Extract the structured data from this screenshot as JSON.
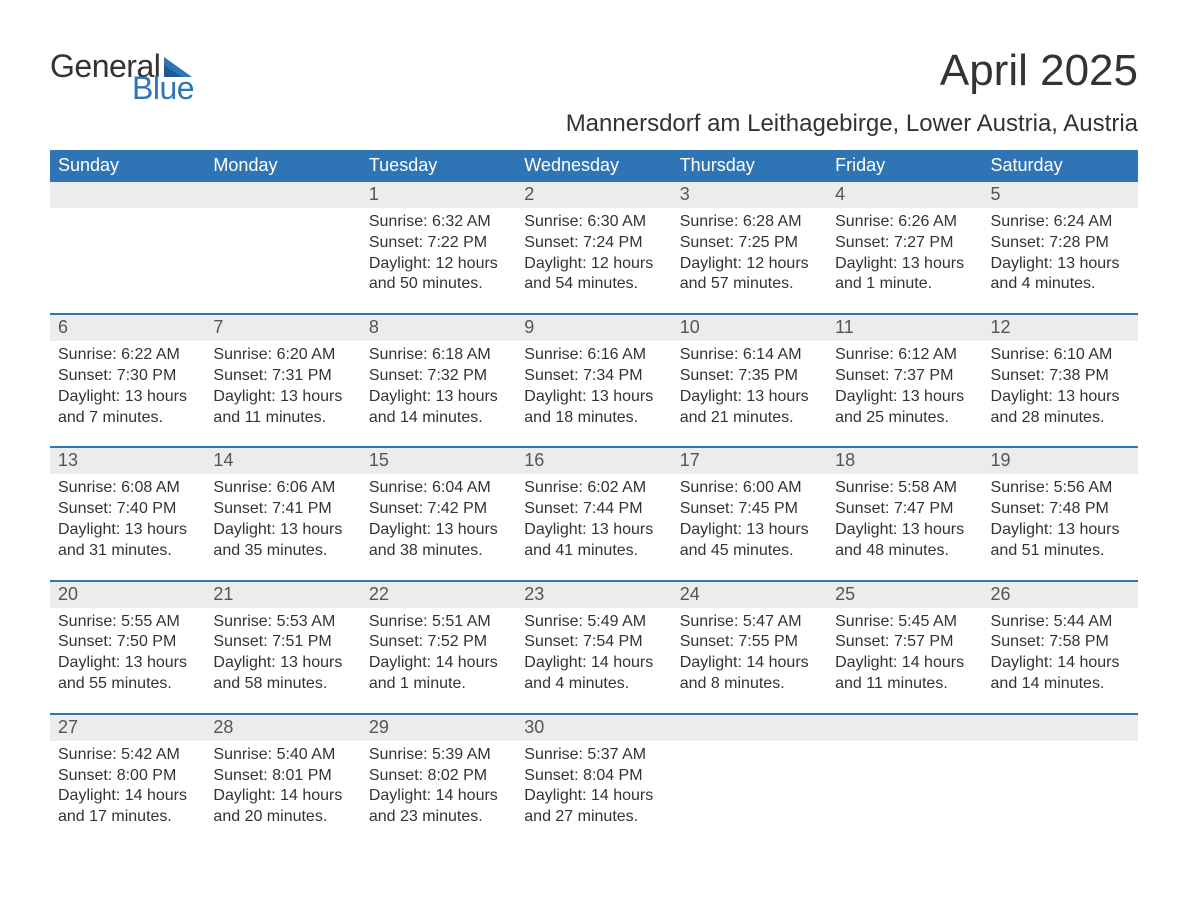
{
  "logo": {
    "text1": "General",
    "text2": "Blue",
    "icon_color": "#2f75b5"
  },
  "title": "April 2025",
  "subtitle": "Mannersdorf am Leithagebirge, Lower Austria, Austria",
  "colors": {
    "header_bg": "#2f75b5",
    "header_text": "#ffffff",
    "daynum_bg": "#ececec",
    "daynum_text": "#555555",
    "body_text": "#333333",
    "week_border": "#2f75b5"
  },
  "dow": [
    "Sunday",
    "Monday",
    "Tuesday",
    "Wednesday",
    "Thursday",
    "Friday",
    "Saturday"
  ],
  "weeks": [
    [
      {
        "n": "",
        "lines": []
      },
      {
        "n": "",
        "lines": []
      },
      {
        "n": "1",
        "lines": [
          "Sunrise: 6:32 AM",
          "Sunset: 7:22 PM",
          "Daylight: 12 hours and 50 minutes."
        ]
      },
      {
        "n": "2",
        "lines": [
          "Sunrise: 6:30 AM",
          "Sunset: 7:24 PM",
          "Daylight: 12 hours and 54 minutes."
        ]
      },
      {
        "n": "3",
        "lines": [
          "Sunrise: 6:28 AM",
          "Sunset: 7:25 PM",
          "Daylight: 12 hours and 57 minutes."
        ]
      },
      {
        "n": "4",
        "lines": [
          "Sunrise: 6:26 AM",
          "Sunset: 7:27 PM",
          "Daylight: 13 hours and 1 minute."
        ]
      },
      {
        "n": "5",
        "lines": [
          "Sunrise: 6:24 AM",
          "Sunset: 7:28 PM",
          "Daylight: 13 hours and 4 minutes."
        ]
      }
    ],
    [
      {
        "n": "6",
        "lines": [
          "Sunrise: 6:22 AM",
          "Sunset: 7:30 PM",
          "Daylight: 13 hours and 7 minutes."
        ]
      },
      {
        "n": "7",
        "lines": [
          "Sunrise: 6:20 AM",
          "Sunset: 7:31 PM",
          "Daylight: 13 hours and 11 minutes."
        ]
      },
      {
        "n": "8",
        "lines": [
          "Sunrise: 6:18 AM",
          "Sunset: 7:32 PM",
          "Daylight: 13 hours and 14 minutes."
        ]
      },
      {
        "n": "9",
        "lines": [
          "Sunrise: 6:16 AM",
          "Sunset: 7:34 PM",
          "Daylight: 13 hours and 18 minutes."
        ]
      },
      {
        "n": "10",
        "lines": [
          "Sunrise: 6:14 AM",
          "Sunset: 7:35 PM",
          "Daylight: 13 hours and 21 minutes."
        ]
      },
      {
        "n": "11",
        "lines": [
          "Sunrise: 6:12 AM",
          "Sunset: 7:37 PM",
          "Daylight: 13 hours and 25 minutes."
        ]
      },
      {
        "n": "12",
        "lines": [
          "Sunrise: 6:10 AM",
          "Sunset: 7:38 PM",
          "Daylight: 13 hours and 28 minutes."
        ]
      }
    ],
    [
      {
        "n": "13",
        "lines": [
          "Sunrise: 6:08 AM",
          "Sunset: 7:40 PM",
          "Daylight: 13 hours and 31 minutes."
        ]
      },
      {
        "n": "14",
        "lines": [
          "Sunrise: 6:06 AM",
          "Sunset: 7:41 PM",
          "Daylight: 13 hours and 35 minutes."
        ]
      },
      {
        "n": "15",
        "lines": [
          "Sunrise: 6:04 AM",
          "Sunset: 7:42 PM",
          "Daylight: 13 hours and 38 minutes."
        ]
      },
      {
        "n": "16",
        "lines": [
          "Sunrise: 6:02 AM",
          "Sunset: 7:44 PM",
          "Daylight: 13 hours and 41 minutes."
        ]
      },
      {
        "n": "17",
        "lines": [
          "Sunrise: 6:00 AM",
          "Sunset: 7:45 PM",
          "Daylight: 13 hours and 45 minutes."
        ]
      },
      {
        "n": "18",
        "lines": [
          "Sunrise: 5:58 AM",
          "Sunset: 7:47 PM",
          "Daylight: 13 hours and 48 minutes."
        ]
      },
      {
        "n": "19",
        "lines": [
          "Sunrise: 5:56 AM",
          "Sunset: 7:48 PM",
          "Daylight: 13 hours and 51 minutes."
        ]
      }
    ],
    [
      {
        "n": "20",
        "lines": [
          "Sunrise: 5:55 AM",
          "Sunset: 7:50 PM",
          "Daylight: 13 hours and 55 minutes."
        ]
      },
      {
        "n": "21",
        "lines": [
          "Sunrise: 5:53 AM",
          "Sunset: 7:51 PM",
          "Daylight: 13 hours and 58 minutes."
        ]
      },
      {
        "n": "22",
        "lines": [
          "Sunrise: 5:51 AM",
          "Sunset: 7:52 PM",
          "Daylight: 14 hours and 1 minute."
        ]
      },
      {
        "n": "23",
        "lines": [
          "Sunrise: 5:49 AM",
          "Sunset: 7:54 PM",
          "Daylight: 14 hours and 4 minutes."
        ]
      },
      {
        "n": "24",
        "lines": [
          "Sunrise: 5:47 AM",
          "Sunset: 7:55 PM",
          "Daylight: 14 hours and 8 minutes."
        ]
      },
      {
        "n": "25",
        "lines": [
          "Sunrise: 5:45 AM",
          "Sunset: 7:57 PM",
          "Daylight: 14 hours and 11 minutes."
        ]
      },
      {
        "n": "26",
        "lines": [
          "Sunrise: 5:44 AM",
          "Sunset: 7:58 PM",
          "Daylight: 14 hours and 14 minutes."
        ]
      }
    ],
    [
      {
        "n": "27",
        "lines": [
          "Sunrise: 5:42 AM",
          "Sunset: 8:00 PM",
          "Daylight: 14 hours and 17 minutes."
        ]
      },
      {
        "n": "28",
        "lines": [
          "Sunrise: 5:40 AM",
          "Sunset: 8:01 PM",
          "Daylight: 14 hours and 20 minutes."
        ]
      },
      {
        "n": "29",
        "lines": [
          "Sunrise: 5:39 AM",
          "Sunset: 8:02 PM",
          "Daylight: 14 hours and 23 minutes."
        ]
      },
      {
        "n": "30",
        "lines": [
          "Sunrise: 5:37 AM",
          "Sunset: 8:04 PM",
          "Daylight: 14 hours and 27 minutes."
        ]
      },
      {
        "n": "",
        "lines": []
      },
      {
        "n": "",
        "lines": []
      },
      {
        "n": "",
        "lines": []
      }
    ]
  ]
}
